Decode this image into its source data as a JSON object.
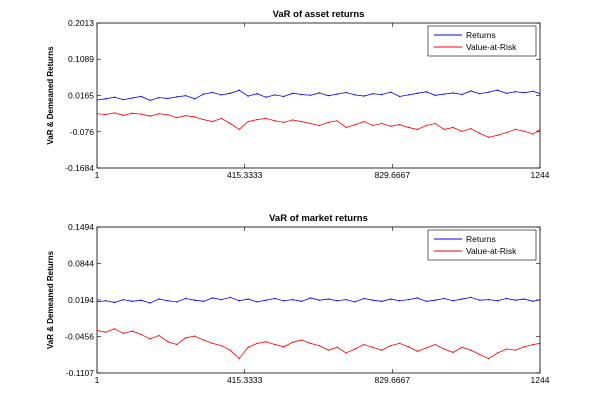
{
  "chart_data": [
    {
      "type": "line",
      "title": "VaR of asset returns",
      "xlabel": "",
      "ylabel": "VaR & Demeaned Returns",
      "xlim": [
        1,
        1244
      ],
      "ylim": [
        -0.1684,
        0.2013
      ],
      "xticks": [
        "1",
        "415.3333",
        "829.6667",
        "1244"
      ],
      "xtick_values": [
        1,
        415.3333,
        829.6667,
        1244
      ],
      "yticks": [
        "0.2013",
        "0.1089",
        "0.0165",
        "-0.076",
        "-0.1684"
      ],
      "ytick_values": [
        0.2013,
        0.1089,
        0.0165,
        -0.076,
        -0.1684
      ],
      "grid": false,
      "legend_position": "top-right",
      "series": [
        {
          "name": "Returns",
          "color": "#0000ff",
          "x": [
            1,
            25,
            50,
            75,
            100,
            125,
            150,
            175,
            200,
            225,
            250,
            275,
            300,
            325,
            350,
            375,
            400,
            425,
            450,
            475,
            500,
            525,
            550,
            575,
            600,
            625,
            650,
            675,
            700,
            725,
            750,
            775,
            800,
            825,
            850,
            875,
            900,
            925,
            950,
            975,
            1000,
            1025,
            1050,
            1075,
            1100,
            1125,
            1150,
            1175,
            1200,
            1225,
            1244
          ],
          "values": [
            0.005,
            0.008,
            0.012,
            0.006,
            0.01,
            0.014,
            0.004,
            0.011,
            0.009,
            0.013,
            0.016,
            0.008,
            0.02,
            0.024,
            0.018,
            0.022,
            0.03,
            0.015,
            0.021,
            0.012,
            0.018,
            0.014,
            0.022,
            0.019,
            0.017,
            0.023,
            0.016,
            0.02,
            0.024,
            0.018,
            0.015,
            0.021,
            0.019,
            0.025,
            0.014,
            0.018,
            0.022,
            0.026,
            0.017,
            0.02,
            0.023,
            0.019,
            0.028,
            0.021,
            0.025,
            0.03,
            0.022,
            0.026,
            0.024,
            0.027,
            0.021
          ]
        },
        {
          "name": "Value-at-Risk",
          "color": "#ff0000",
          "x": [
            1,
            25,
            50,
            75,
            100,
            125,
            150,
            175,
            200,
            225,
            250,
            275,
            300,
            325,
            350,
            375,
            400,
            425,
            450,
            475,
            500,
            525,
            550,
            575,
            600,
            625,
            650,
            675,
            700,
            725,
            750,
            775,
            800,
            825,
            850,
            875,
            900,
            925,
            950,
            975,
            1000,
            1025,
            1050,
            1075,
            1100,
            1125,
            1150,
            1175,
            1200,
            1225,
            1244
          ],
          "values": [
            -0.03,
            -0.032,
            -0.028,
            -0.034,
            -0.029,
            -0.031,
            -0.036,
            -0.03,
            -0.033,
            -0.04,
            -0.035,
            -0.038,
            -0.045,
            -0.05,
            -0.042,
            -0.055,
            -0.07,
            -0.05,
            -0.045,
            -0.042,
            -0.048,
            -0.052,
            -0.046,
            -0.05,
            -0.055,
            -0.06,
            -0.052,
            -0.048,
            -0.065,
            -0.058,
            -0.05,
            -0.06,
            -0.055,
            -0.062,
            -0.058,
            -0.065,
            -0.07,
            -0.06,
            -0.055,
            -0.07,
            -0.065,
            -0.075,
            -0.068,
            -0.08,
            -0.09,
            -0.085,
            -0.078,
            -0.07,
            -0.075,
            -0.082,
            -0.07
          ]
        }
      ]
    },
    {
      "type": "line",
      "title": "VaR of market returns",
      "xlabel": "",
      "ylabel": "VaR & Demeaned Returns",
      "xlim": [
        1,
        1244
      ],
      "ylim": [
        -0.1107,
        0.1494
      ],
      "xticks": [
        "1",
        "415.3333",
        "829.6667",
        "1244"
      ],
      "xtick_values": [
        1,
        415.3333,
        829.6667,
        1244
      ],
      "yticks": [
        "0.1494",
        "0.0844",
        "0.0194",
        "-0.0456",
        "-0.1107"
      ],
      "ytick_values": [
        0.1494,
        0.0844,
        0.0194,
        -0.0456,
        -0.1107
      ],
      "grid": false,
      "legend_position": "top-right",
      "series": [
        {
          "name": "Returns",
          "color": "#0000ff",
          "x": [
            1,
            25,
            50,
            75,
            100,
            125,
            150,
            175,
            200,
            225,
            250,
            275,
            300,
            325,
            350,
            375,
            400,
            425,
            450,
            475,
            500,
            525,
            550,
            575,
            600,
            625,
            650,
            675,
            700,
            725,
            750,
            775,
            800,
            825,
            850,
            875,
            900,
            925,
            950,
            975,
            1000,
            1025,
            1050,
            1075,
            1100,
            1125,
            1150,
            1175,
            1200,
            1225,
            1244
          ],
          "values": [
            0.016,
            0.018,
            0.015,
            0.02,
            0.017,
            0.019,
            0.014,
            0.021,
            0.018,
            0.016,
            0.022,
            0.019,
            0.017,
            0.023,
            0.02,
            0.024,
            0.018,
            0.021,
            0.016,
            0.019,
            0.022,
            0.018,
            0.02,
            0.017,
            0.023,
            0.019,
            0.021,
            0.018,
            0.02,
            0.016,
            0.022,
            0.019,
            0.017,
            0.021,
            0.018,
            0.02,
            0.023,
            0.017,
            0.019,
            0.022,
            0.018,
            0.021,
            0.024,
            0.019,
            0.02,
            0.018,
            0.022,
            0.019,
            0.021,
            0.017,
            0.02
          ]
        },
        {
          "name": "Value-at-Risk",
          "color": "#ff0000",
          "x": [
            1,
            25,
            50,
            75,
            100,
            125,
            150,
            175,
            200,
            225,
            250,
            275,
            300,
            325,
            350,
            375,
            400,
            425,
            450,
            475,
            500,
            525,
            550,
            575,
            600,
            625,
            650,
            675,
            700,
            725,
            750,
            775,
            800,
            825,
            850,
            875,
            900,
            925,
            950,
            975,
            1000,
            1025,
            1050,
            1075,
            1100,
            1125,
            1150,
            1175,
            1200,
            1225,
            1244
          ],
          "values": [
            -0.035,
            -0.038,
            -0.032,
            -0.04,
            -0.036,
            -0.042,
            -0.05,
            -0.044,
            -0.055,
            -0.06,
            -0.048,
            -0.045,
            -0.052,
            -0.058,
            -0.062,
            -0.07,
            -0.085,
            -0.065,
            -0.058,
            -0.055,
            -0.06,
            -0.064,
            -0.056,
            -0.052,
            -0.058,
            -0.062,
            -0.07,
            -0.065,
            -0.075,
            -0.068,
            -0.06,
            -0.065,
            -0.07,
            -0.062,
            -0.058,
            -0.064,
            -0.072,
            -0.066,
            -0.06,
            -0.068,
            -0.074,
            -0.065,
            -0.07,
            -0.078,
            -0.085,
            -0.075,
            -0.068,
            -0.07,
            -0.064,
            -0.06,
            -0.058
          ]
        }
      ]
    }
  ]
}
